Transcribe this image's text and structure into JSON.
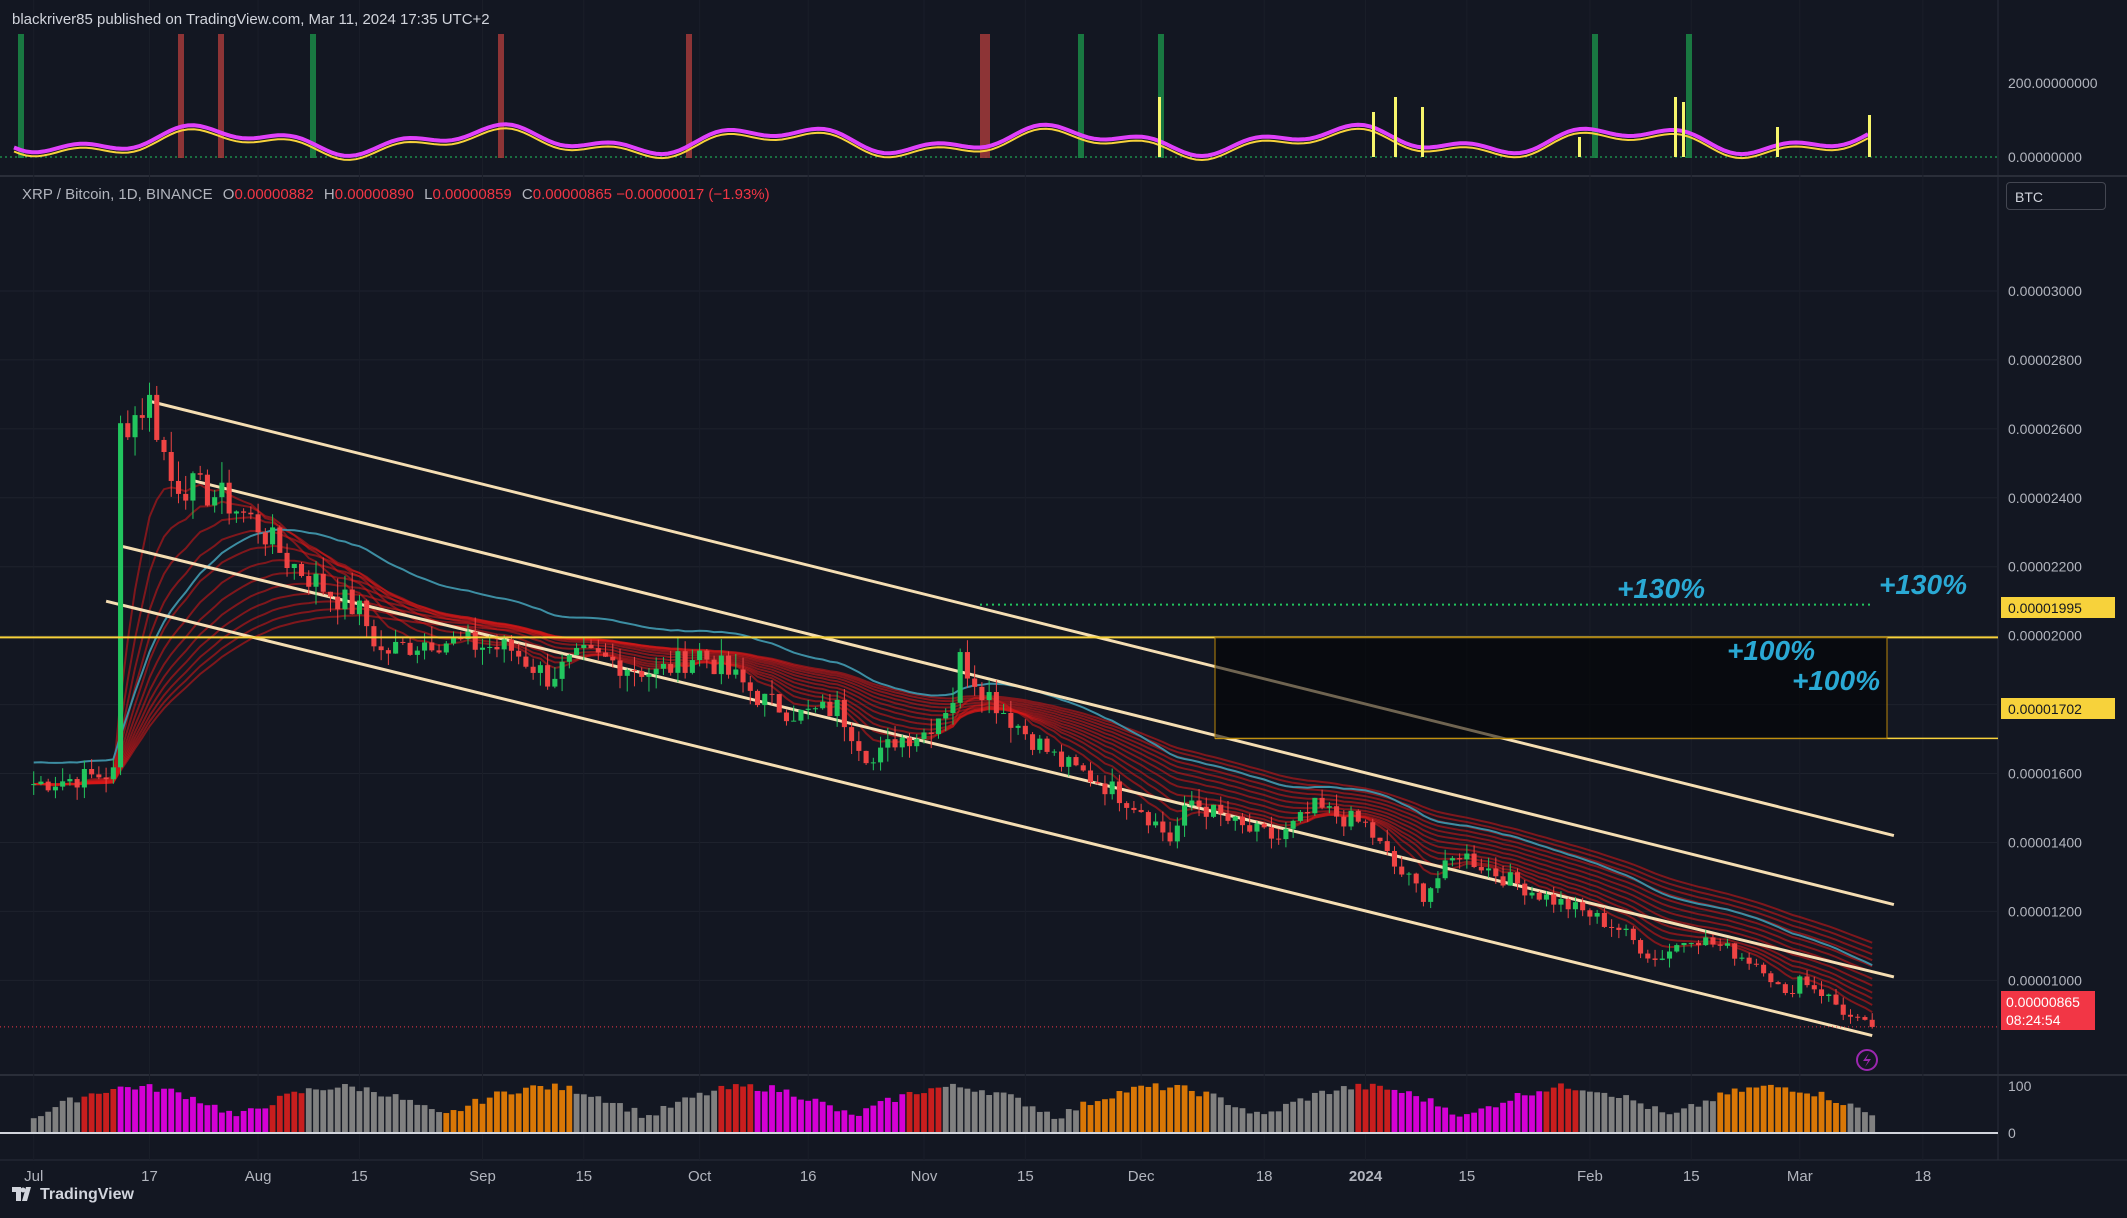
{
  "header": {
    "published": "blackriver85 published on TradingView.com, Mar 11, 2024 17:35 UTC+2"
  },
  "legend": {
    "symbol": "XRP / Bitcoin, 1D, BINANCE",
    "o_label": "O",
    "o_value": "0.00000882",
    "h_label": "H",
    "h_value": "0.00000890",
    "l_label": "L",
    "l_value": "0.00000859",
    "c_label": "C",
    "c_value": "0.00000865",
    "change": "−0.00000017 (−1.93%)"
  },
  "currency_button": "BTC",
  "brand": "TradingView",
  "colors": {
    "background": "#131722",
    "up": "#26a69a",
    "down": "#f23645",
    "channel": "#f5deb3",
    "level": "#f7d23b",
    "annotation": "#2aa9d4",
    "ribbon_red": "#d81818",
    "ribbon_green": "#1fb81f",
    "oscillator": "#e040fb"
  },
  "annotations": {
    "pct_130_a": "+130%",
    "pct_130_b": "+130%",
    "pct_100_a": "+100%",
    "pct_100_b": "+100%"
  },
  "price_tags": {
    "level_high": "0.00001995",
    "level_low": "0.00001702",
    "last_price": "0.00000865",
    "countdown": "08:24:54"
  },
  "chart_data": {
    "type": "candlestick",
    "symbol": "XRP / Bitcoin",
    "interval": "1D",
    "exchange": "BINANCE",
    "y_ticks": [
      "0.00003000",
      "0.00002800",
      "0.00002600",
      "0.00002400",
      "0.00002200",
      "0.00002000",
      "0.00001800",
      "0.00001600",
      "0.00001400",
      "0.00001200",
      "0.00001000"
    ],
    "ylim": [
      7.4e-06,
      3.2e-05
    ],
    "x_ticks": [
      "Jul",
      "17",
      "Aug",
      "15",
      "Sep",
      "15",
      "Oct",
      "16",
      "Nov",
      "15",
      "Dec",
      "18",
      "2024",
      "15",
      "Feb",
      "15",
      "Mar",
      "18"
    ],
    "osc_ticks": [
      "200.00000000",
      "0.00000000"
    ],
    "vol_ticks": [
      "100",
      "0"
    ],
    "close_path": [
      [
        "2023-07-01",
        1.57e-05
      ],
      [
        "2023-07-12",
        1.6e-05
      ],
      [
        "2023-07-13",
        2.6e-05
      ],
      [
        "2023-07-17",
        2.68e-05
      ],
      [
        "2023-07-20",
        2.45e-05
      ],
      [
        "2023-07-27",
        2.4e-05
      ],
      [
        "2023-08-01",
        2.32e-05
      ],
      [
        "2023-08-05",
        2.22e-05
      ],
      [
        "2023-08-10",
        2.14e-05
      ],
      [
        "2023-08-15",
        2.07e-05
      ],
      [
        "2023-08-18",
        1.95e-05
      ],
      [
        "2023-08-25",
        1.99e-05
      ],
      [
        "2023-09-01",
        1.97e-05
      ],
      [
        "2023-09-05",
        1.96e-05
      ],
      [
        "2023-09-10",
        1.88e-05
      ],
      [
        "2023-09-15",
        1.94e-05
      ],
      [
        "2023-09-20",
        1.92e-05
      ],
      [
        "2023-09-25",
        1.89e-05
      ],
      [
        "2023-10-01",
        1.95e-05
      ],
      [
        "2023-10-05",
        1.89e-05
      ],
      [
        "2023-10-10",
        1.81e-05
      ],
      [
        "2023-10-15",
        1.77e-05
      ],
      [
        "2023-10-20",
        1.79e-05
      ],
      [
        "2023-10-25",
        1.63e-05
      ],
      [
        "2023-10-28",
        1.7e-05
      ],
      [
        "2023-11-01",
        1.72e-05
      ],
      [
        "2023-11-05",
        1.82e-05
      ],
      [
        "2023-11-06",
        1.93e-05
      ],
      [
        "2023-11-09",
        1.85e-05
      ],
      [
        "2023-11-13",
        1.76e-05
      ],
      [
        "2023-11-15",
        1.72e-05
      ],
      [
        "2023-11-20",
        1.63e-05
      ],
      [
        "2023-11-25",
        1.58e-05
      ],
      [
        "2023-12-01",
        1.5e-05
      ],
      [
        "2023-12-05",
        1.41e-05
      ],
      [
        "2023-12-08",
        1.52e-05
      ],
      [
        "2023-12-15",
        1.44e-05
      ],
      [
        "2023-12-20",
        1.41e-05
      ],
      [
        "2023-12-25",
        1.5e-05
      ],
      [
        "2024-01-01",
        1.45e-05
      ],
      [
        "2024-01-05",
        1.33e-05
      ],
      [
        "2024-01-09",
        1.25e-05
      ],
      [
        "2024-01-14",
        1.37e-05
      ],
      [
        "2024-01-20",
        1.3e-05
      ],
      [
        "2024-01-25",
        1.25e-05
      ],
      [
        "2024-02-01",
        1.19e-05
      ],
      [
        "2024-02-05",
        1.15e-05
      ],
      [
        "2024-02-10",
        1.06e-05
      ],
      [
        "2024-02-15",
        1.13e-05
      ],
      [
        "2024-02-20",
        1.09e-05
      ],
      [
        "2024-02-25",
        1.04e-05
      ],
      [
        "2024-02-28",
        9.5e-06
      ],
      [
        "2024-03-01",
        1.01e-05
      ],
      [
        "2024-03-05",
        9.5e-06
      ],
      [
        "2024-03-08",
        8.9e-06
      ],
      [
        "2024-03-11",
        8.6e-06
      ]
    ],
    "channel_lines": [
      {
        "from": [
          "2023-07-17",
          2.68e-05
        ],
        "to": [
          "2024-03-14",
          1.42e-05
        ]
      },
      {
        "from": [
          "2023-07-23",
          2.45e-05
        ],
        "to": [
          "2024-03-14",
          1.22e-05
        ]
      },
      {
        "from": [
          "2023-07-13",
          2.26e-05
        ],
        "to": [
          "2024-03-14",
          1.01e-05
        ]
      },
      {
        "from": [
          "2023-07-11",
          2.1e-05
        ],
        "to": [
          "2024-03-11",
          8.4e-06
        ]
      }
    ],
    "levels": [
      1.995e-05,
      1.702e-05
    ],
    "level_text": [
      "0.00001995",
      "0.00001702"
    ],
    "last_price": 8.65e-06
  }
}
